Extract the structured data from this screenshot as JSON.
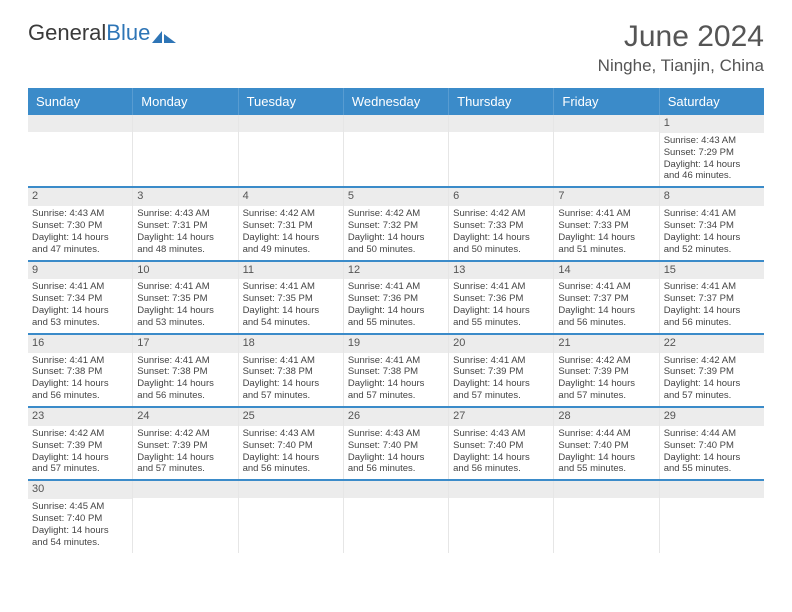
{
  "brand": {
    "part1": "General",
    "part2": "Blue"
  },
  "title": "June 2024",
  "location": "Ninghe, Tianjin, China",
  "headers": [
    "Sunday",
    "Monday",
    "Tuesday",
    "Wednesday",
    "Thursday",
    "Friday",
    "Saturday"
  ],
  "header_bg": "#3b8bc9",
  "header_fg": "#ffffff",
  "daynum_bg": "#ececec",
  "border_color": "#3b8bc9",
  "weeks": [
    [
      null,
      null,
      null,
      null,
      null,
      null,
      {
        "num": "1",
        "sunrise": "Sunrise: 4:43 AM",
        "sunset": "Sunset: 7:29 PM",
        "daylight1": "Daylight: 14 hours",
        "daylight2": "and 46 minutes."
      }
    ],
    [
      {
        "num": "2",
        "sunrise": "Sunrise: 4:43 AM",
        "sunset": "Sunset: 7:30 PM",
        "daylight1": "Daylight: 14 hours",
        "daylight2": "and 47 minutes."
      },
      {
        "num": "3",
        "sunrise": "Sunrise: 4:43 AM",
        "sunset": "Sunset: 7:31 PM",
        "daylight1": "Daylight: 14 hours",
        "daylight2": "and 48 minutes."
      },
      {
        "num": "4",
        "sunrise": "Sunrise: 4:42 AM",
        "sunset": "Sunset: 7:31 PM",
        "daylight1": "Daylight: 14 hours",
        "daylight2": "and 49 minutes."
      },
      {
        "num": "5",
        "sunrise": "Sunrise: 4:42 AM",
        "sunset": "Sunset: 7:32 PM",
        "daylight1": "Daylight: 14 hours",
        "daylight2": "and 50 minutes."
      },
      {
        "num": "6",
        "sunrise": "Sunrise: 4:42 AM",
        "sunset": "Sunset: 7:33 PM",
        "daylight1": "Daylight: 14 hours",
        "daylight2": "and 50 minutes."
      },
      {
        "num": "7",
        "sunrise": "Sunrise: 4:41 AM",
        "sunset": "Sunset: 7:33 PM",
        "daylight1": "Daylight: 14 hours",
        "daylight2": "and 51 minutes."
      },
      {
        "num": "8",
        "sunrise": "Sunrise: 4:41 AM",
        "sunset": "Sunset: 7:34 PM",
        "daylight1": "Daylight: 14 hours",
        "daylight2": "and 52 minutes."
      }
    ],
    [
      {
        "num": "9",
        "sunrise": "Sunrise: 4:41 AM",
        "sunset": "Sunset: 7:34 PM",
        "daylight1": "Daylight: 14 hours",
        "daylight2": "and 53 minutes."
      },
      {
        "num": "10",
        "sunrise": "Sunrise: 4:41 AM",
        "sunset": "Sunset: 7:35 PM",
        "daylight1": "Daylight: 14 hours",
        "daylight2": "and 53 minutes."
      },
      {
        "num": "11",
        "sunrise": "Sunrise: 4:41 AM",
        "sunset": "Sunset: 7:35 PM",
        "daylight1": "Daylight: 14 hours",
        "daylight2": "and 54 minutes."
      },
      {
        "num": "12",
        "sunrise": "Sunrise: 4:41 AM",
        "sunset": "Sunset: 7:36 PM",
        "daylight1": "Daylight: 14 hours",
        "daylight2": "and 55 minutes."
      },
      {
        "num": "13",
        "sunrise": "Sunrise: 4:41 AM",
        "sunset": "Sunset: 7:36 PM",
        "daylight1": "Daylight: 14 hours",
        "daylight2": "and 55 minutes."
      },
      {
        "num": "14",
        "sunrise": "Sunrise: 4:41 AM",
        "sunset": "Sunset: 7:37 PM",
        "daylight1": "Daylight: 14 hours",
        "daylight2": "and 56 minutes."
      },
      {
        "num": "15",
        "sunrise": "Sunrise: 4:41 AM",
        "sunset": "Sunset: 7:37 PM",
        "daylight1": "Daylight: 14 hours",
        "daylight2": "and 56 minutes."
      }
    ],
    [
      {
        "num": "16",
        "sunrise": "Sunrise: 4:41 AM",
        "sunset": "Sunset: 7:38 PM",
        "daylight1": "Daylight: 14 hours",
        "daylight2": "and 56 minutes."
      },
      {
        "num": "17",
        "sunrise": "Sunrise: 4:41 AM",
        "sunset": "Sunset: 7:38 PM",
        "daylight1": "Daylight: 14 hours",
        "daylight2": "and 56 minutes."
      },
      {
        "num": "18",
        "sunrise": "Sunrise: 4:41 AM",
        "sunset": "Sunset: 7:38 PM",
        "daylight1": "Daylight: 14 hours",
        "daylight2": "and 57 minutes."
      },
      {
        "num": "19",
        "sunrise": "Sunrise: 4:41 AM",
        "sunset": "Sunset: 7:38 PM",
        "daylight1": "Daylight: 14 hours",
        "daylight2": "and 57 minutes."
      },
      {
        "num": "20",
        "sunrise": "Sunrise: 4:41 AM",
        "sunset": "Sunset: 7:39 PM",
        "daylight1": "Daylight: 14 hours",
        "daylight2": "and 57 minutes."
      },
      {
        "num": "21",
        "sunrise": "Sunrise: 4:42 AM",
        "sunset": "Sunset: 7:39 PM",
        "daylight1": "Daylight: 14 hours",
        "daylight2": "and 57 minutes."
      },
      {
        "num": "22",
        "sunrise": "Sunrise: 4:42 AM",
        "sunset": "Sunset: 7:39 PM",
        "daylight1": "Daylight: 14 hours",
        "daylight2": "and 57 minutes."
      }
    ],
    [
      {
        "num": "23",
        "sunrise": "Sunrise: 4:42 AM",
        "sunset": "Sunset: 7:39 PM",
        "daylight1": "Daylight: 14 hours",
        "daylight2": "and 57 minutes."
      },
      {
        "num": "24",
        "sunrise": "Sunrise: 4:42 AM",
        "sunset": "Sunset: 7:39 PM",
        "daylight1": "Daylight: 14 hours",
        "daylight2": "and 57 minutes."
      },
      {
        "num": "25",
        "sunrise": "Sunrise: 4:43 AM",
        "sunset": "Sunset: 7:40 PM",
        "daylight1": "Daylight: 14 hours",
        "daylight2": "and 56 minutes."
      },
      {
        "num": "26",
        "sunrise": "Sunrise: 4:43 AM",
        "sunset": "Sunset: 7:40 PM",
        "daylight1": "Daylight: 14 hours",
        "daylight2": "and 56 minutes."
      },
      {
        "num": "27",
        "sunrise": "Sunrise: 4:43 AM",
        "sunset": "Sunset: 7:40 PM",
        "daylight1": "Daylight: 14 hours",
        "daylight2": "and 56 minutes."
      },
      {
        "num": "28",
        "sunrise": "Sunrise: 4:44 AM",
        "sunset": "Sunset: 7:40 PM",
        "daylight1": "Daylight: 14 hours",
        "daylight2": "and 55 minutes."
      },
      {
        "num": "29",
        "sunrise": "Sunrise: 4:44 AM",
        "sunset": "Sunset: 7:40 PM",
        "daylight1": "Daylight: 14 hours",
        "daylight2": "and 55 minutes."
      }
    ],
    [
      {
        "num": "30",
        "sunrise": "Sunrise: 4:45 AM",
        "sunset": "Sunset: 7:40 PM",
        "daylight1": "Daylight: 14 hours",
        "daylight2": "and 54 minutes."
      },
      null,
      null,
      null,
      null,
      null,
      null
    ]
  ]
}
